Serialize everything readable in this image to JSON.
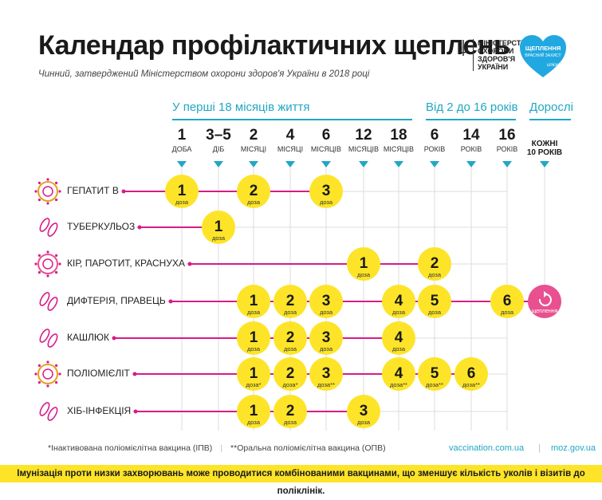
{
  "header": {
    "title": "Календар профілактичних щеплень",
    "subtitle": "Чинний, затверджений Міністерством охорони здоров'я України в 2018 році",
    "ministry_lines": [
      "Міністерство",
      "охорони",
      "здоров'я",
      "України"
    ],
    "unicef": {
      "title_line1": "ЩЕПЛЕННЯ",
      "title_line2": "ВРАСНИЙ ЗАХИСТ",
      "brand": "unicef"
    }
  },
  "groups": [
    {
      "label": "У перші 18 місяців життя"
    },
    {
      "label": "Від 2 до 16 років"
    },
    {
      "label": "Дорослі"
    }
  ],
  "columns": [
    {
      "num": "1",
      "unit": "доба"
    },
    {
      "num": "3–5",
      "unit": "діб"
    },
    {
      "num": "2",
      "unit": "місяці"
    },
    {
      "num": "4",
      "unit": "місяці"
    },
    {
      "num": "6",
      "unit": "місяців"
    },
    {
      "num": "12",
      "unit": "місяців"
    },
    {
      "num": "18",
      "unit": "місяців"
    },
    {
      "num": "6",
      "unit": "років"
    },
    {
      "num": "14",
      "unit": "років"
    },
    {
      "num": "16",
      "unit": "років"
    }
  ],
  "adult_column": {
    "line1": "кожні",
    "line2": "10 років"
  },
  "dose_word": "доза",
  "booster_word": "щеплення",
  "diseases": [
    {
      "label": "Гепатит В",
      "icon": "hepatitis-virus-icon",
      "doses": [
        {
          "col": 0,
          "n": "1",
          "mark": ""
        },
        {
          "col": 2,
          "n": "2",
          "mark": ""
        },
        {
          "col": 4,
          "n": "3",
          "mark": ""
        }
      ]
    },
    {
      "label": "Туберкульоз",
      "icon": "tuberculosis-bacteria-icon",
      "doses": [
        {
          "col": 1,
          "n": "1",
          "mark": ""
        }
      ]
    },
    {
      "label": "Кір, паротит, краснуха",
      "icon": "measles-virus-icon",
      "doses": [
        {
          "col": 5,
          "n": "1",
          "mark": ""
        },
        {
          "col": 7,
          "n": "2",
          "mark": ""
        }
      ]
    },
    {
      "label": "Дифтерія, правець",
      "icon": "diphtheria-bacteria-icon",
      "doses": [
        {
          "col": 2,
          "n": "1",
          "mark": ""
        },
        {
          "col": 3,
          "n": "2",
          "mark": ""
        },
        {
          "col": 4,
          "n": "3",
          "mark": ""
        },
        {
          "col": 6,
          "n": "4",
          "mark": ""
        },
        {
          "col": 7,
          "n": "5",
          "mark": ""
        },
        {
          "col": 9,
          "n": "6",
          "mark": ""
        }
      ],
      "adult_booster": true
    },
    {
      "label": "Кашлюк",
      "icon": "pertussis-bacteria-icon",
      "doses": [
        {
          "col": 2,
          "n": "1",
          "mark": ""
        },
        {
          "col": 3,
          "n": "2",
          "mark": ""
        },
        {
          "col": 4,
          "n": "3",
          "mark": ""
        },
        {
          "col": 6,
          "n": "4",
          "mark": ""
        }
      ]
    },
    {
      "label": "Поліомієліт",
      "icon": "polio-virus-icon",
      "doses": [
        {
          "col": 2,
          "n": "1",
          "mark": "*"
        },
        {
          "col": 3,
          "n": "2",
          "mark": "*"
        },
        {
          "col": 4,
          "n": "3",
          "mark": "**"
        },
        {
          "col": 6,
          "n": "4",
          "mark": "**"
        },
        {
          "col": 7,
          "n": "5",
          "mark": "**"
        },
        {
          "col": 8,
          "n": "6",
          "mark": "**"
        }
      ]
    },
    {
      "label": "Хіб-інфекція",
      "icon": "hib-bacteria-icon",
      "doses": [
        {
          "col": 2,
          "n": "1",
          "mark": ""
        },
        {
          "col": 3,
          "n": "2",
          "mark": ""
        },
        {
          "col": 5,
          "n": "3",
          "mark": ""
        }
      ]
    }
  ],
  "footnotes": {
    "ipv": "*Інактивована поліомієлітна вакцина (ІПВ)",
    "separator": "|",
    "opv": "**Оральна поліомієлітна вакцина (ОПВ)"
  },
  "links": {
    "site1": "vaccination.com.ua",
    "separator": "|",
    "site2": "moz.gov.ua"
  },
  "bottom_note": "Імунізація проти низки захворювань може проводитися комбінованими вакцинами, що зменшує кількість уколів і візитів до поліклінік.",
  "colors": {
    "accent": "#21a7c4",
    "dose": "#fde428",
    "row_line": "#d81b8a",
    "booster": "#e8508f",
    "grid": "#dcdcdc",
    "bottom_bar": "#fde428"
  }
}
